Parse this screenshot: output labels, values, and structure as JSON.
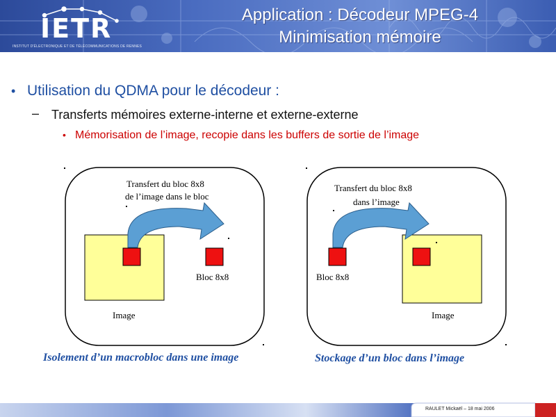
{
  "header": {
    "logo": "IETR",
    "institute": "INSTITUT D'ÉLECTRONIQUE ET DE TÉLÉCOMMUNICATIONS DE RENNES",
    "title_line1": "Application : Décodeur MPEG-4",
    "title_line2": "Minimisation mémoire"
  },
  "content": {
    "bullet1": "Utilisation du QDMA pour le décodeur :",
    "bullet2": "Transferts mémoires externe-interne et externe-externe",
    "bullet3": "Mémorisation de l’image, recopie dans les buffers de sortie de l’image"
  },
  "diagram_left": {
    "transfer_line1": "Transfert du bloc 8x8",
    "transfer_line2": "de l’image dans le bloc",
    "bloc_label": "Bloc 8x8",
    "image_label": "Image",
    "caption": "Isolement d’un macrobloc dans une image"
  },
  "diagram_right": {
    "transfer_line1": "Transfert du bloc 8x8",
    "transfer_line2": "dans l’image",
    "bloc_label": "Bloc 8x8",
    "image_label": "Image",
    "caption": "Stockage d’un bloc dans l’image"
  },
  "footer": {
    "author": "RAULET Mickaël – 18 mai 2006"
  },
  "colors": {
    "header_blue": "#3a5fb0",
    "bullet_blue": "#1f4fa2",
    "bullet_red": "#cc0000",
    "image_yellow": "#ffff99",
    "block_red": "#ee1111",
    "arrow_blue": "#5b9fd4"
  }
}
